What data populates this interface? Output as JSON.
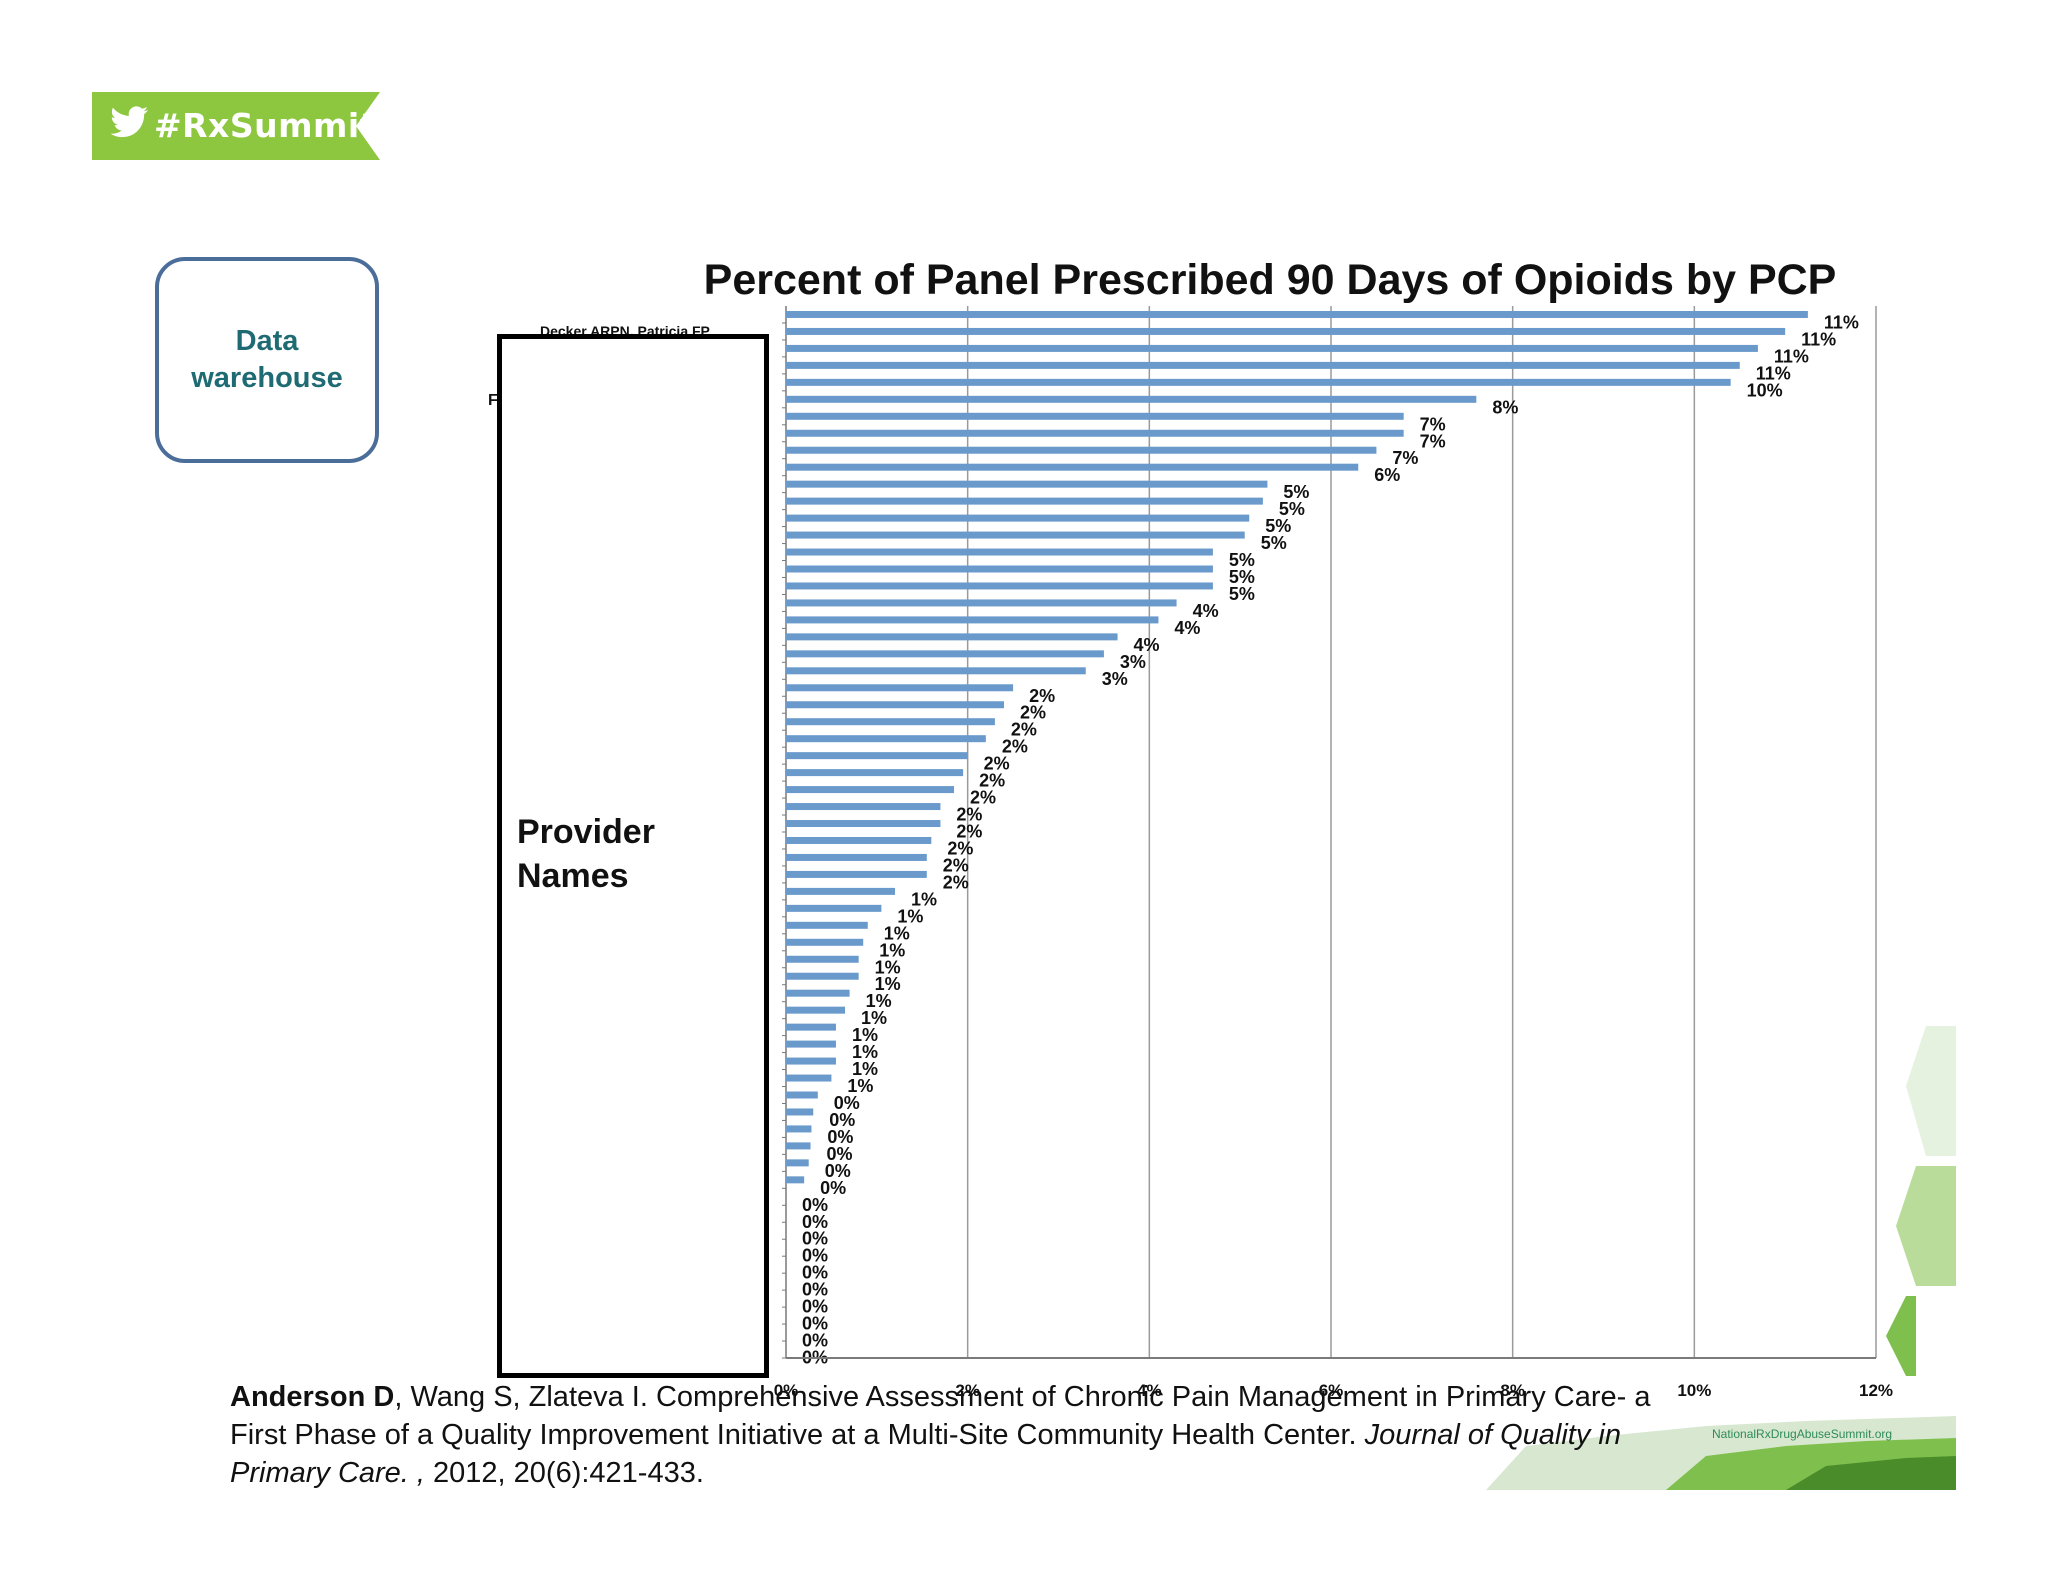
{
  "badge": {
    "text": "#RxSummit",
    "color": "#8dc63f",
    "icon": "twitter-bird-icon"
  },
  "data_box": {
    "label": "Data warehouse"
  },
  "names_overlay": {
    "label": "Provider Names"
  },
  "partial_labels": {
    "top": "Decker ARPN, Patricia FP",
    "second": "F"
  },
  "chart_data": {
    "type": "bar",
    "orientation": "horizontal",
    "title": "Percent of Panel Prescribed 90 Days of Opioids by PCP",
    "xlim": [
      0,
      12
    ],
    "x_ticks": [
      "0%",
      "2%",
      "4%",
      "6%",
      "8%",
      "10%",
      "12%"
    ],
    "bar_color": "#6a9acb",
    "values": [
      11.25,
      11.0,
      10.7,
      10.5,
      10.4,
      7.6,
      6.8,
      6.8,
      6.5,
      6.3,
      5.3,
      5.25,
      5.1,
      5.05,
      4.7,
      4.7,
      4.7,
      4.3,
      4.1,
      3.65,
      3.5,
      3.3,
      2.5,
      2.4,
      2.3,
      2.2,
      2.0,
      1.95,
      1.85,
      1.7,
      1.7,
      1.6,
      1.55,
      1.55,
      1.2,
      1.05,
      0.9,
      0.85,
      0.8,
      0.8,
      0.7,
      0.65,
      0.55,
      0.55,
      0.55,
      0.5,
      0.35,
      0.3,
      0.28,
      0.27,
      0.25,
      0.2,
      0.0,
      0.0,
      0.0,
      0.0,
      0.0,
      0.0,
      0.0,
      0.0,
      0.0,
      0.0
    ],
    "labels": [
      "11%",
      "11%",
      "11%",
      "11%",
      "10%",
      "8%",
      "7%",
      "7%",
      "7%",
      "6%",
      "5%",
      "5%",
      "5%",
      "5%",
      "5%",
      "5%",
      "5%",
      "4%",
      "4%",
      "4%",
      "3%",
      "3%",
      "2%",
      "2%",
      "2%",
      "2%",
      "2%",
      "2%",
      "2%",
      "2%",
      "2%",
      "2%",
      "2%",
      "2%",
      "1%",
      "1%",
      "1%",
      "1%",
      "1%",
      "1%",
      "1%",
      "1%",
      "1%",
      "1%",
      "1%",
      "1%",
      "0%",
      "0%",
      "0%",
      "0%",
      "0%",
      "0%",
      "0%",
      "0%",
      "0%",
      "0%",
      "0%",
      "0%",
      "0%",
      "0%",
      "0%",
      "0%"
    ]
  },
  "citation": {
    "author": "Anderson D",
    "rest": ", Wang S, Zlateva I. Comprehensive Assessment of Chronic Pain Management in Primary Care- a First Phase of a Quality Improvement Initiative at a Multi-Site Community Health Center. ",
    "journal": "Journal of Quality in Primary Care. ,",
    "details": " 2012, 20(6):421-433."
  },
  "corner": {
    "url": "NationalRxDrugAbuseSummit.org"
  }
}
